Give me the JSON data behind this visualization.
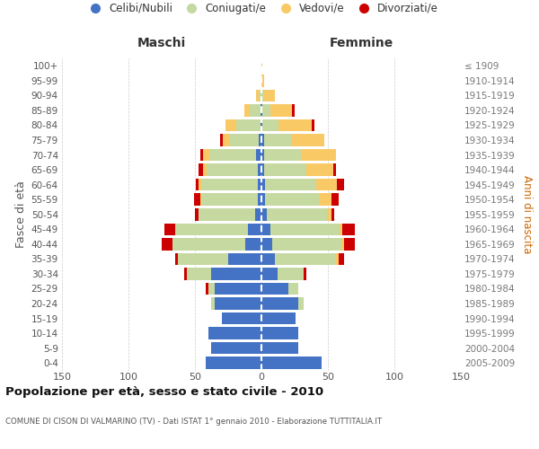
{
  "age_groups": [
    "0-4",
    "5-9",
    "10-14",
    "15-19",
    "20-24",
    "25-29",
    "30-34",
    "35-39",
    "40-44",
    "45-49",
    "50-54",
    "55-59",
    "60-64",
    "65-69",
    "70-74",
    "75-79",
    "80-84",
    "85-89",
    "90-94",
    "95-99",
    "100+"
  ],
  "birth_years": [
    "2005-2009",
    "2000-2004",
    "1995-1999",
    "1990-1994",
    "1985-1989",
    "1980-1984",
    "1975-1979",
    "1970-1974",
    "1965-1969",
    "1960-1964",
    "1955-1959",
    "1950-1954",
    "1945-1949",
    "1940-1944",
    "1935-1939",
    "1930-1934",
    "1925-1929",
    "1920-1924",
    "1915-1919",
    "1910-1914",
    "≤ 1909"
  ],
  "males_single": [
    42,
    38,
    40,
    30,
    35,
    35,
    38,
    25,
    12,
    10,
    5,
    3,
    3,
    3,
    4,
    2,
    1,
    1,
    0,
    0,
    0
  ],
  "males_married": [
    0,
    0,
    0,
    0,
    3,
    5,
    18,
    38,
    55,
    55,
    42,
    42,
    42,
    38,
    35,
    22,
    18,
    8,
    2,
    0,
    0
  ],
  "males_widowed": [
    0,
    0,
    0,
    0,
    0,
    0,
    0,
    0,
    0,
    0,
    0,
    1,
    2,
    3,
    5,
    5,
    8,
    4,
    2,
    0,
    0
  ],
  "males_divorced": [
    0,
    0,
    0,
    0,
    0,
    2,
    2,
    2,
    8,
    8,
    3,
    5,
    2,
    3,
    2,
    2,
    0,
    0,
    0,
    0,
    0
  ],
  "females_single": [
    45,
    28,
    28,
    26,
    28,
    20,
    12,
    10,
    8,
    7,
    4,
    3,
    3,
    2,
    2,
    2,
    1,
    1,
    0,
    0,
    0
  ],
  "females_married": [
    0,
    0,
    0,
    0,
    4,
    8,
    20,
    46,
    52,
    52,
    45,
    40,
    38,
    32,
    28,
    20,
    12,
    6,
    2,
    0,
    0
  ],
  "females_widowed": [
    0,
    0,
    0,
    0,
    0,
    0,
    0,
    2,
    2,
    2,
    4,
    10,
    16,
    20,
    26,
    25,
    25,
    16,
    8,
    2,
    1
  ],
  "females_divorced": [
    0,
    0,
    0,
    0,
    0,
    0,
    2,
    4,
    8,
    9,
    2,
    5,
    5,
    2,
    0,
    0,
    2,
    2,
    0,
    0,
    0
  ],
  "color_single": "#4472c4",
  "color_married": "#c5d9a0",
  "color_widowed": "#f9c966",
  "color_divorced": "#cc0000",
  "legend_labels": [
    "Celibi/Nubili",
    "Coniugati/e",
    "Vedovi/e",
    "Divorziati/e"
  ],
  "title": "Popolazione per età, sesso e stato civile - 2010",
  "subtitle": "COMUNE DI CISON DI VALMARINO (TV) - Dati ISTAT 1° gennaio 2010 - Elaborazione TUTTITALIA.IT",
  "ylabel_left": "Fasce di età",
  "ylabel_right": "Anni di nascita",
  "label_maschi": "Maschi",
  "label_femmine": "Femmine",
  "xlim": 150,
  "bg_color": "#ffffff",
  "grid_color": "#cccccc",
  "right_ylabel_color": "#cc6600"
}
